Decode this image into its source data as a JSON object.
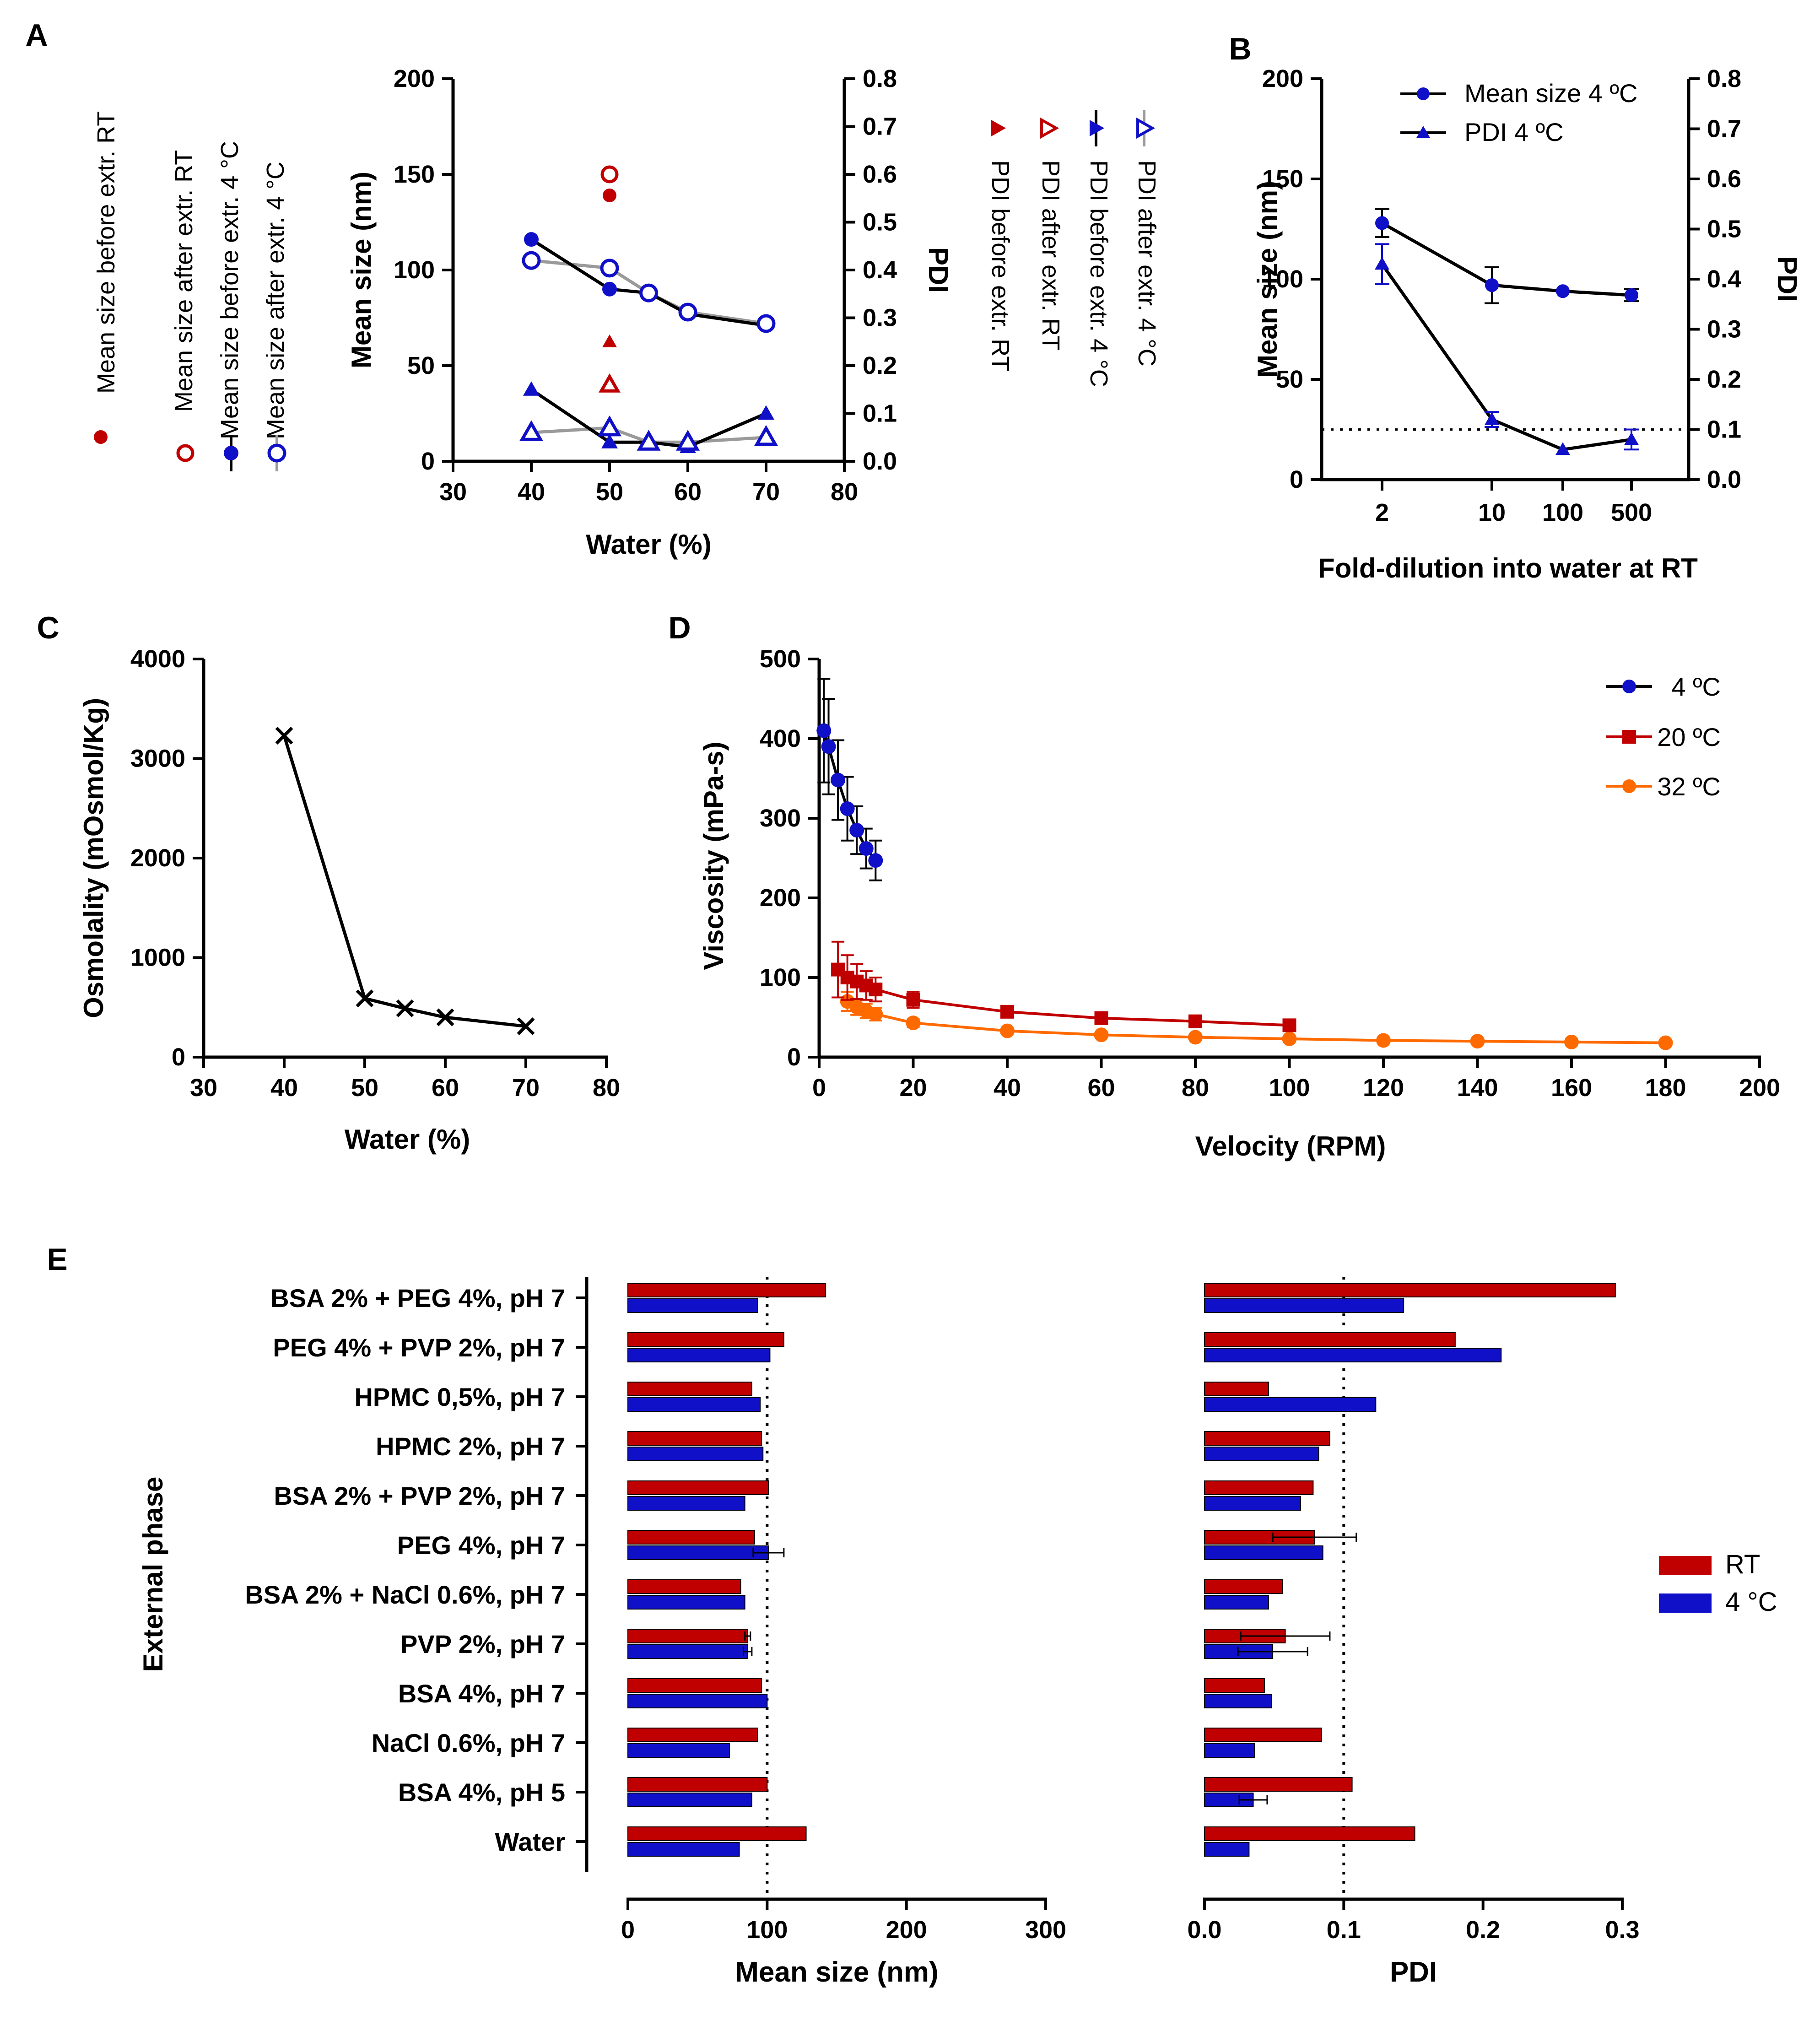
{
  "colors": {
    "red": "#c00000",
    "blue": "#1010c8",
    "orange": "#ff6a00",
    "black": "#000000",
    "gray": "#9a9a9a"
  },
  "panels": {
    "a": "A",
    "b": "B",
    "c": "C",
    "d": "D",
    "e": "E"
  },
  "chart_data": [
    {
      "id": "A",
      "type": "line",
      "xlabel": "Water (%)",
      "ylabel": "Mean size (nm)",
      "y2label": "PDI",
      "xlim": [
        30,
        80
      ],
      "ylim": [
        0,
        200
      ],
      "y2lim": [
        0,
        0.8
      ],
      "xticks": [
        "30",
        "40",
        "50",
        "60",
        "70",
        "80"
      ],
      "yticks": [
        "0",
        "50",
        "100",
        "150",
        "200"
      ],
      "y2ticks": [
        "0.0",
        "0.1",
        "0.2",
        "0.3",
        "0.4",
        "0.5",
        "0.6",
        "0.7",
        "0.8"
      ],
      "legend_left": [
        "Mean size before extr. RT",
        "Mean size after extr. RT",
        "Mean size before extr. 4 °C",
        "Mean size after extr. 4 °C"
      ],
      "legend_right": [
        "PDI before extr. RT",
        "PDI after extr. RT",
        "PDI before extr. 4 °C",
        "PDI after extr. 4 °C"
      ],
      "series": [
        {
          "name": "Mean size before extr. RT",
          "axis": "left",
          "x": [
            50
          ],
          "y": [
            139
          ]
        },
        {
          "name": "Mean size after extr. RT",
          "axis": "left",
          "x": [
            50
          ],
          "y": [
            150
          ]
        },
        {
          "name": "Mean size before extr. 4 °C",
          "axis": "left",
          "x": [
            40,
            50,
            55,
            60,
            70
          ],
          "y": [
            116,
            90,
            88,
            77,
            71
          ]
        },
        {
          "name": "Mean size after extr. 4 °C",
          "axis": "left",
          "x": [
            40,
            50,
            55,
            60,
            70
          ],
          "y": [
            105,
            101,
            88,
            78,
            72
          ]
        },
        {
          "name": "PDI before extr. RT",
          "axis": "right",
          "x": [
            50
          ],
          "y": [
            0.25
          ]
        },
        {
          "name": "PDI after extr. RT",
          "axis": "right",
          "x": [
            50
          ],
          "y": [
            0.16
          ]
        },
        {
          "name": "PDI before extr. 4 °C",
          "axis": "right",
          "x": [
            40,
            50,
            55,
            60,
            70
          ],
          "y": [
            0.15,
            0.04,
            0.04,
            0.03,
            0.1
          ]
        },
        {
          "name": "PDI after extr. 4 °C",
          "axis": "right",
          "x": [
            40,
            50,
            55,
            60,
            70
          ],
          "y": [
            0.06,
            0.07,
            0.04,
            0.04,
            0.05
          ]
        }
      ]
    },
    {
      "id": "B",
      "type": "line",
      "xlabel": "Fold-dilution into water at RT",
      "ylabel": "Mean size (nm)",
      "y2label": "PDI",
      "categories": [
        "2",
        "10",
        "100",
        "500"
      ],
      "ylim": [
        0,
        200
      ],
      "y2lim": [
        0,
        0.8
      ],
      "yticks": [
        "0",
        "50",
        "100",
        "150",
        "200"
      ],
      "y2ticks": [
        "0.0",
        "0.1",
        "0.2",
        "0.3",
        "0.4",
        "0.5",
        "0.6",
        "0.7",
        "0.8"
      ],
      "reference_line_pdi": 0.1,
      "series": [
        {
          "name": "Mean size 4 ºC",
          "axis": "left",
          "values": [
            128,
            97,
            94,
            92
          ],
          "errors": [
            7,
            9,
            1,
            3
          ]
        },
        {
          "name": "PDI 4 ºC",
          "axis": "right",
          "values": [
            0.43,
            0.12,
            0.06,
            0.08
          ],
          "errors": [
            0.04,
            0.015,
            0.005,
            0.02
          ]
        }
      ]
    },
    {
      "id": "C",
      "type": "line",
      "xlabel": "Water (%)",
      "ylabel": "Osmolality (mOsmol/Kg)",
      "xlim": [
        30,
        80
      ],
      "ylim": [
        0,
        4000
      ],
      "xticks": [
        "30",
        "40",
        "50",
        "60",
        "70",
        "80"
      ],
      "yticks": [
        "0",
        "1000",
        "2000",
        "3000",
        "4000"
      ],
      "series": [
        {
          "name": "Osmolality",
          "x": [
            40,
            50,
            55,
            60,
            70
          ],
          "y": [
            3230,
            590,
            490,
            400,
            310
          ]
        }
      ]
    },
    {
      "id": "D",
      "type": "line",
      "xlabel": "Velocity (RPM)",
      "ylabel": "Viscosity (mPa-s)",
      "xlim": [
        0,
        200
      ],
      "ylim": [
        0,
        500
      ],
      "xticks": [
        "0",
        "20",
        "40",
        "60",
        "80",
        "100",
        "120",
        "140",
        "160",
        "180",
        "200"
      ],
      "yticks": [
        "0",
        "100",
        "200",
        "300",
        "400",
        "500"
      ],
      "series": [
        {
          "name": "4 ºC",
          "x": [
            1,
            2,
            4,
            6,
            8,
            10,
            12
          ],
          "y": [
            410,
            390,
            348,
            312,
            285,
            262,
            247
          ],
          "errors": [
            65,
            60,
            50,
            40,
            30,
            25,
            25
          ]
        },
        {
          "name": "20 ºC",
          "x": [
            4,
            6,
            8,
            10,
            12,
            20,
            40,
            60,
            80,
            100
          ],
          "y": [
            110,
            100,
            95,
            90,
            85,
            72,
            57,
            49,
            45,
            40
          ],
          "errors": [
            35,
            28,
            22,
            18,
            15,
            10,
            5,
            4,
            3,
            3
          ]
        },
        {
          "name": "32 ºC",
          "x": [
            6,
            8,
            10,
            12,
            20,
            40,
            60,
            80,
            100,
            120,
            140,
            160,
            180
          ],
          "y": [
            70,
            63,
            58,
            54,
            43,
            33,
            28,
            25,
            23,
            21,
            20,
            19,
            18
          ],
          "errors": [
            12,
            10,
            9,
            8,
            5,
            3,
            3,
            2,
            2,
            2,
            2,
            2,
            2
          ]
        }
      ]
    },
    {
      "id": "E",
      "type": "bar",
      "orientation": "horizontal",
      "ylabel": "External phase",
      "categories": [
        "BSA 2% + PEG 4%, pH 7",
        "PEG 4% + PVP 2%, pH 7",
        "HPMC 0,5%, pH 7",
        "HPMC 2%, pH 7",
        "BSA 2% + PVP 2%, pH 7",
        "PEG 4%, pH 7",
        "BSA 2% + NaCl 0.6%, pH 7",
        "PVP 2%, pH 7",
        "BSA 4%, pH 7",
        "NaCl 0.6%, pH 7",
        "BSA 4%, pH 5",
        "Water"
      ],
      "legend": [
        "RT",
        "4 °C"
      ],
      "subplots": [
        {
          "xlabel": "Mean size (nm)",
          "xlim": [
            0,
            300
          ],
          "xticks": [
            "0",
            "100",
            "200",
            "300"
          ],
          "reference_line": 100,
          "series": [
            {
              "name": "RT",
              "values": [
                142,
                112,
                89,
                96,
                101,
                91,
                81,
                86,
                96,
                93,
                100,
                128
              ],
              "errors": [
                0,
                0,
                0,
                0,
                0,
                0,
                0,
                2,
                0,
                0,
                0,
                0
              ]
            },
            {
              "name": "4 °C",
              "values": [
                93,
                102,
                95,
                97,
                84,
                101,
                84,
                86,
                100,
                73,
                89,
                80
              ],
              "errors": [
                0,
                0,
                0,
                0,
                0,
                11,
                0,
                3,
                0,
                0,
                0,
                0
              ]
            }
          ]
        },
        {
          "xlabel": "PDI",
          "xlim": [
            0,
            0.3
          ],
          "xticks": [
            "0.0",
            "0.1",
            "0.2",
            "0.3"
          ],
          "reference_line": 0.1,
          "series": [
            {
              "name": "RT",
              "values": [
                0.295,
                0.18,
                0.046,
                0.09,
                0.078,
                0.079,
                0.056,
                0.058,
                0.043,
                0.084,
                0.106,
                0.151
              ],
              "errors": [
                0,
                0,
                0,
                0,
                0,
                0.03,
                0,
                0.032,
                0,
                0,
                0,
                0
              ]
            },
            {
              "name": "4 °C",
              "values": [
                0.143,
                0.213,
                0.123,
                0.082,
                0.069,
                0.085,
                0.046,
                0.049,
                0.048,
                0.036,
                0.035,
                0.032
              ],
              "errors": [
                0,
                0,
                0,
                0,
                0,
                0,
                0,
                0.025,
                0,
                0,
                0.01,
                0
              ]
            }
          ]
        }
      ]
    }
  ]
}
